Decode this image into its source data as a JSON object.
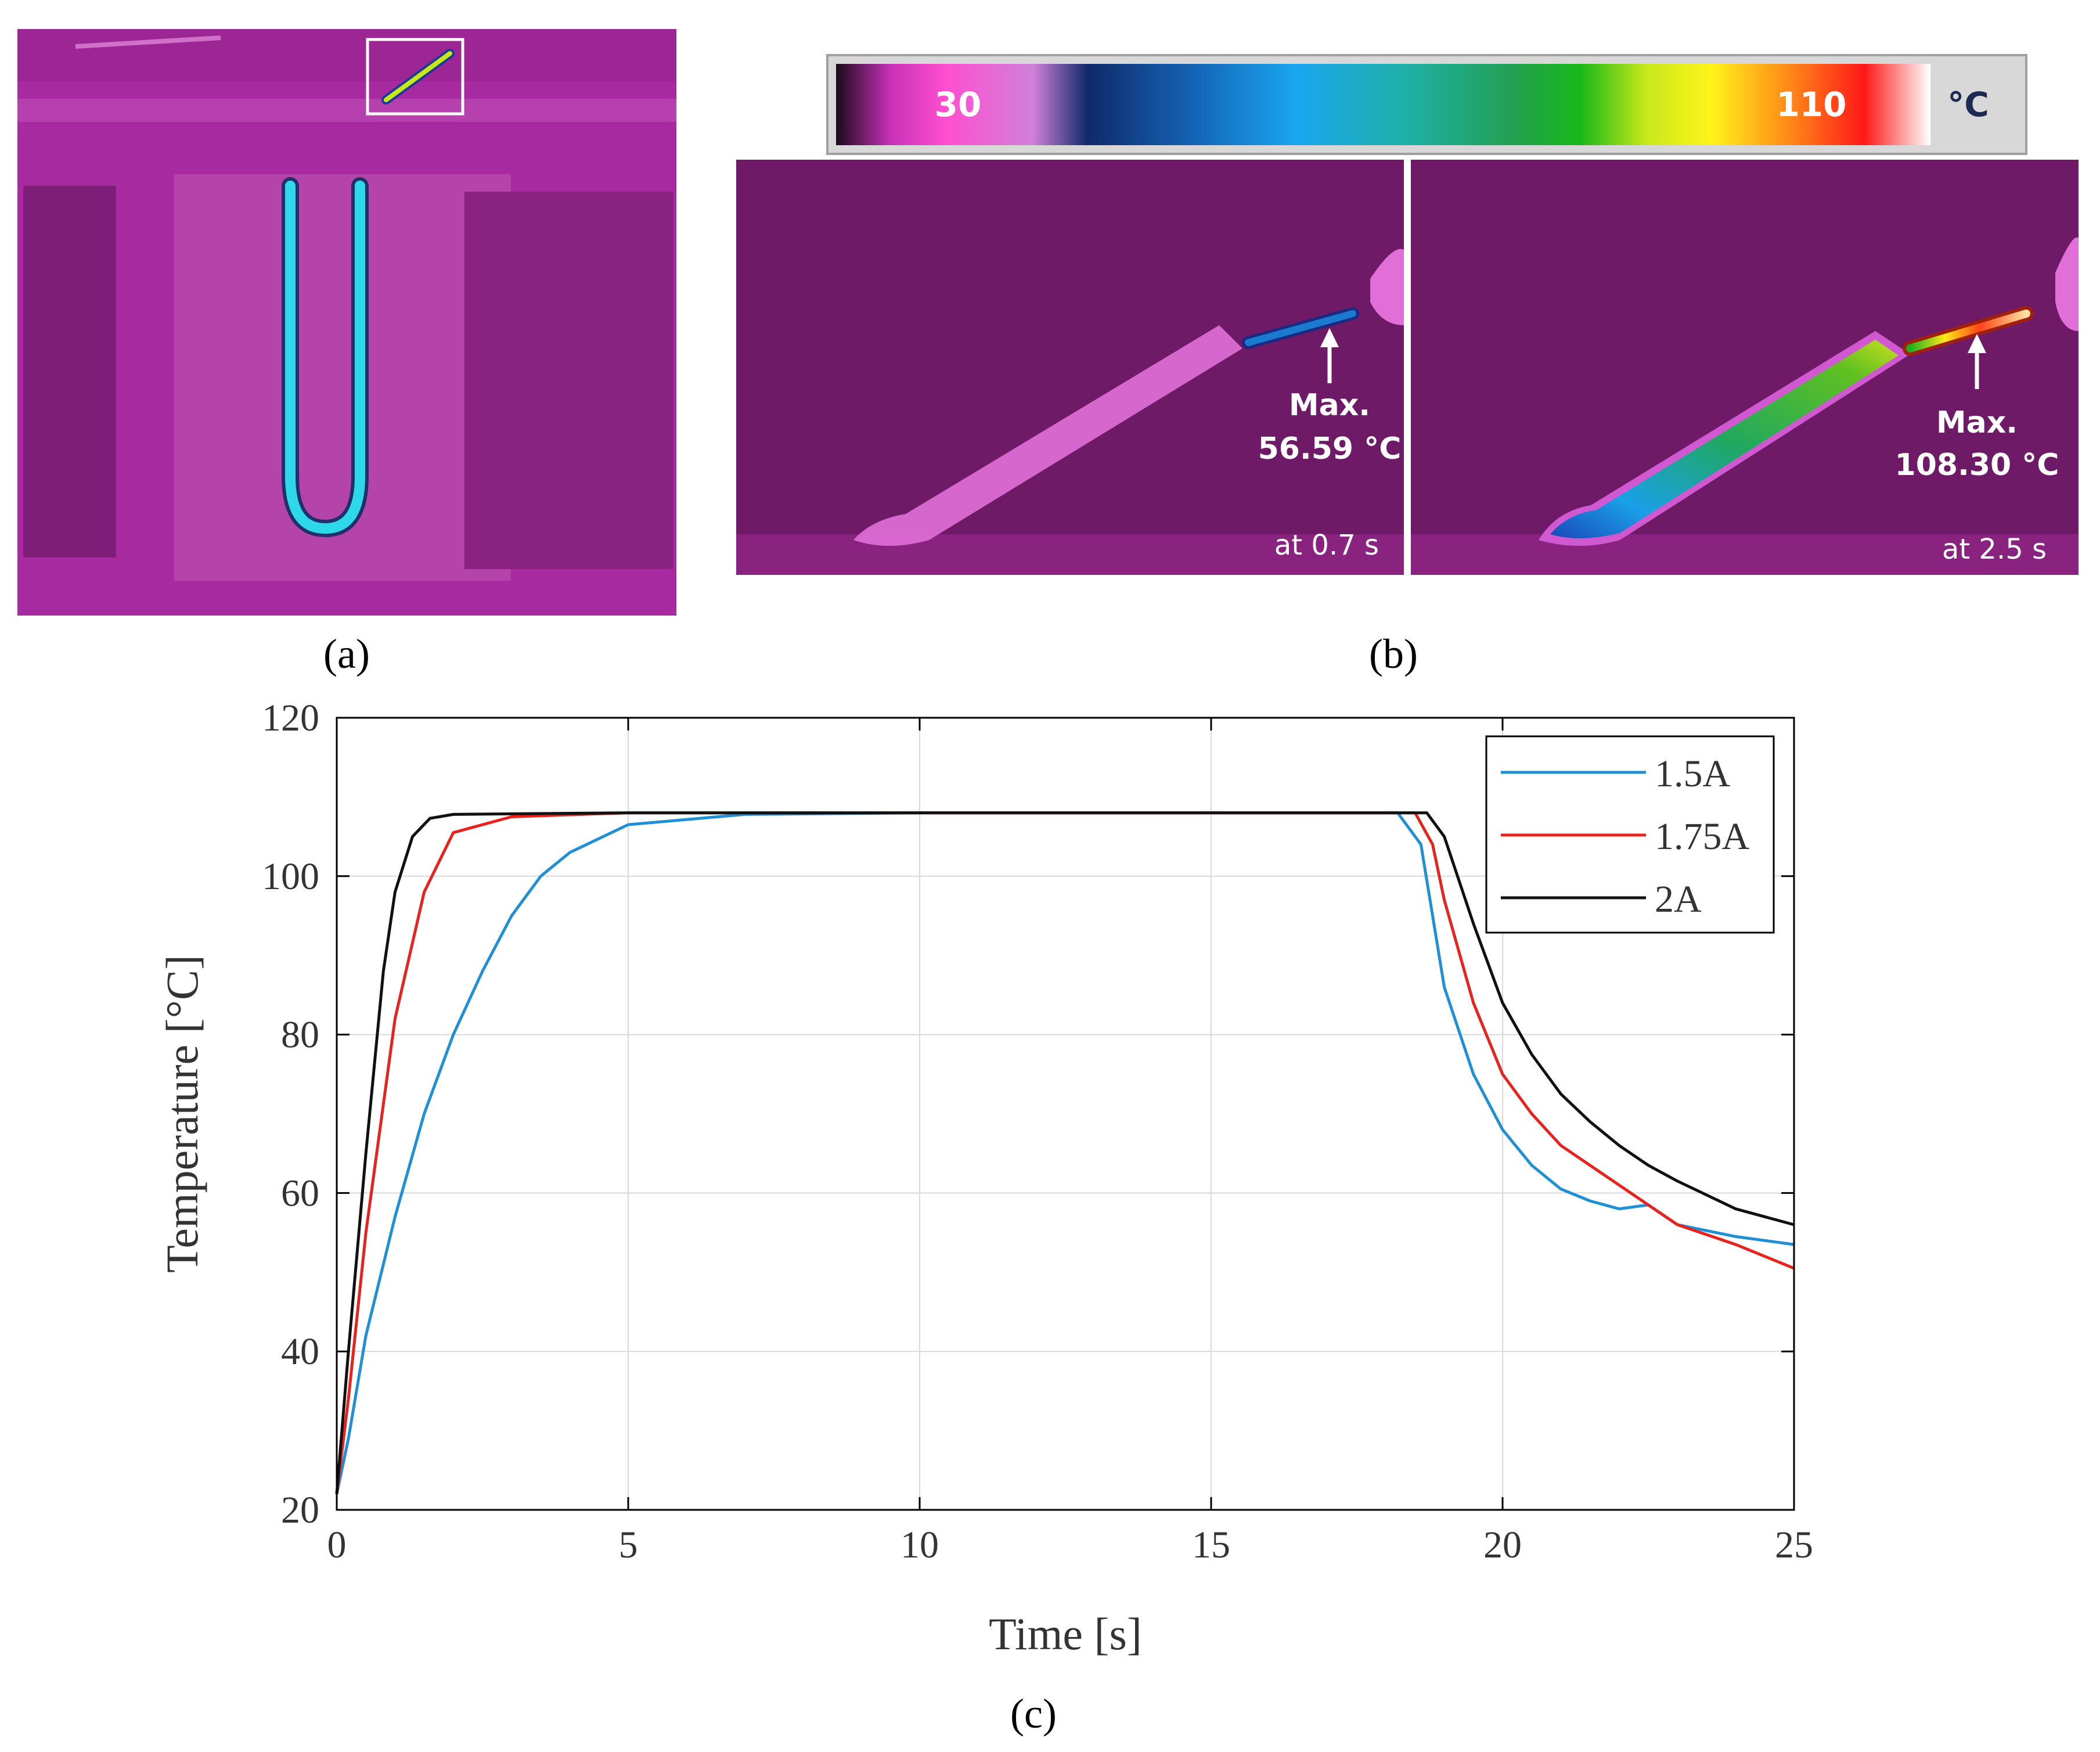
{
  "panel_labels": {
    "a": "(a)",
    "b": "(b)",
    "c": "(c)"
  },
  "colorbar": {
    "min_label": "30",
    "max_label": "110",
    "unit": "°C"
  },
  "thermal_left": {
    "max_label": "Max.",
    "max_value": "56.59 °C",
    "time": "at 0.7 s"
  },
  "thermal_right": {
    "max_label": "Max.",
    "max_value": "108.30 °C",
    "time": "at  2.5 s"
  },
  "colors": {
    "thermal_bg": "#a8209e",
    "thermal_dark": "#6e1a66",
    "cyan": "#29d1e8",
    "series_15": "#1f8fd6",
    "series_175": "#e8231d",
    "series_2": "#111111"
  },
  "chart_data": {
    "type": "line",
    "title": "",
    "xlabel": "Time [s]",
    "ylabel": "Temperature [°C]",
    "xlim": [
      0,
      25
    ],
    "ylim": [
      20,
      120
    ],
    "xticks": [
      0,
      5,
      10,
      15,
      20,
      25
    ],
    "yticks": [
      20,
      40,
      60,
      80,
      100,
      120
    ],
    "grid": true,
    "legend_position": "top-right",
    "series": [
      {
        "name": "1.5A",
        "color": "#1f8fd6",
        "x": [
          0,
          0.2,
          0.5,
          1,
          1.5,
          2,
          2.5,
          3,
          3.5,
          4,
          5,
          7,
          10,
          15,
          18.2,
          18.6,
          19,
          19.5,
          20,
          20.5,
          21,
          21.5,
          22,
          22.5,
          23,
          24,
          25
        ],
        "y": [
          22,
          29,
          42,
          57,
          70,
          80,
          88,
          95,
          100,
          103,
          106.5,
          107.8,
          108,
          108,
          108,
          104,
          86,
          75,
          68,
          63.5,
          60.5,
          59,
          58,
          58.5,
          56,
          54.5,
          53.5
        ]
      },
      {
        "name": "1.75A",
        "color": "#e8231d",
        "x": [
          0,
          0.2,
          0.5,
          1,
          1.5,
          2,
          3,
          5,
          10,
          15,
          18.5,
          18.8,
          19,
          19.5,
          20,
          20.5,
          21,
          21.5,
          22,
          22.5,
          23,
          24,
          25
        ],
        "y": [
          22,
          34,
          55,
          82,
          98,
          105.5,
          107.5,
          108,
          108,
          108,
          108,
          104,
          97,
          84,
          75,
          70,
          66,
          63.5,
          61,
          58.5,
          56,
          53.5,
          50.5
        ]
      },
      {
        "name": "2A",
        "color": "#111111",
        "x": [
          0,
          0.2,
          0.5,
          0.8,
          1,
          1.3,
          1.6,
          2,
          5,
          10,
          15,
          18.7,
          19,
          19.5,
          20,
          20.5,
          21,
          21.5,
          22,
          22.5,
          23,
          24,
          25
        ],
        "y": [
          22,
          40,
          65,
          88,
          98,
          105,
          107.3,
          107.8,
          108,
          108,
          108,
          108,
          105,
          94,
          84,
          77.5,
          72.5,
          69,
          66,
          63.5,
          61.5,
          58,
          56
        ]
      }
    ]
  }
}
